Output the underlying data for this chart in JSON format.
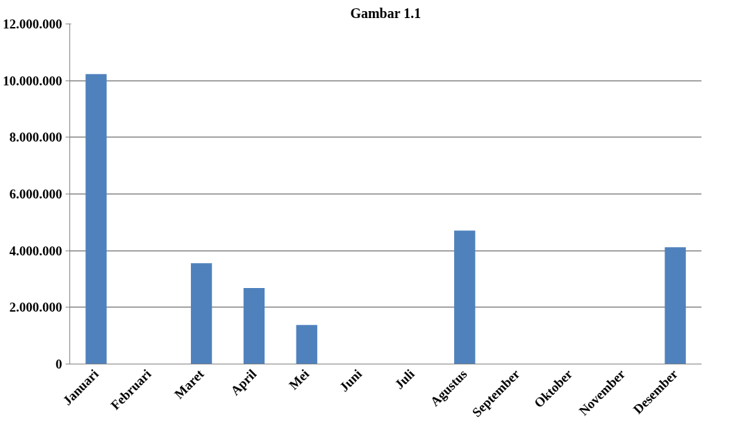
{
  "chart_data": {
    "type": "bar",
    "title": "Gambar 1.1",
    "categories": [
      "Januari",
      "Februari",
      "Maret",
      "April",
      "Mei",
      "Juni",
      "Juli",
      "Agustus",
      "September",
      "Oktober",
      "November",
      "Desember"
    ],
    "values": [
      10230000,
      0,
      3560000,
      2680000,
      1380000,
      0,
      0,
      4710000,
      0,
      0,
      0,
      4120000
    ],
    "color": "#4f81bd",
    "ylim": [
      0,
      12000000
    ],
    "yticks": [
      {
        "value": 0,
        "label": "0"
      },
      {
        "value": 2000000,
        "label": "2.000.000"
      },
      {
        "value": 4000000,
        "label": "4.000.000"
      },
      {
        "value": 6000000,
        "label": "6.000.000"
      },
      {
        "value": 8000000,
        "label": "8.000.000"
      },
      {
        "value": 10000000,
        "label": "10.000.000"
      },
      {
        "value": 12000000,
        "label": "12.000.000"
      }
    ],
    "grid": "y"
  }
}
